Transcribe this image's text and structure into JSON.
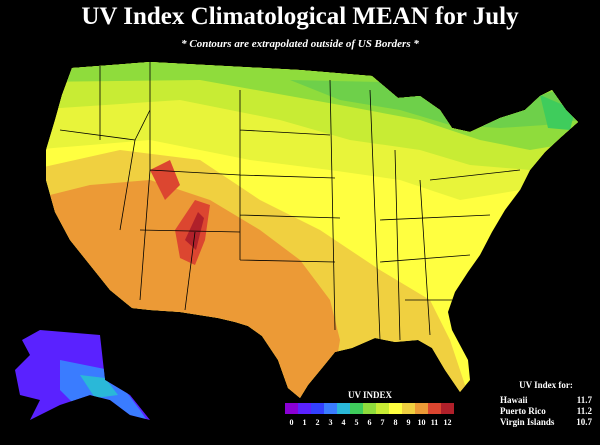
{
  "title": "UV Index Climatological MEAN for July",
  "subtitle": "* Contours are extrapolated outside of US Borders *",
  "legend": {
    "title": "UV INDEX",
    "levels": [
      0,
      1,
      2,
      3,
      4,
      5,
      6,
      7,
      8,
      9,
      10,
      11,
      12
    ],
    "colors": [
      "#8a00d4",
      "#5a22ff",
      "#3340ff",
      "#3a7cff",
      "#2ab8d8",
      "#3fcc5c",
      "#8fdc3c",
      "#c8ec34",
      "#ffff40",
      "#f0d040",
      "#ec9a36",
      "#dc4630",
      "#b0202a"
    ]
  },
  "table": {
    "title": "UV Index for:",
    "rows": [
      [
        "Hawaii",
        11.7
      ],
      [
        "Puerto Rico",
        11.2
      ],
      [
        "Virgin Islands",
        10.7
      ]
    ]
  }
}
